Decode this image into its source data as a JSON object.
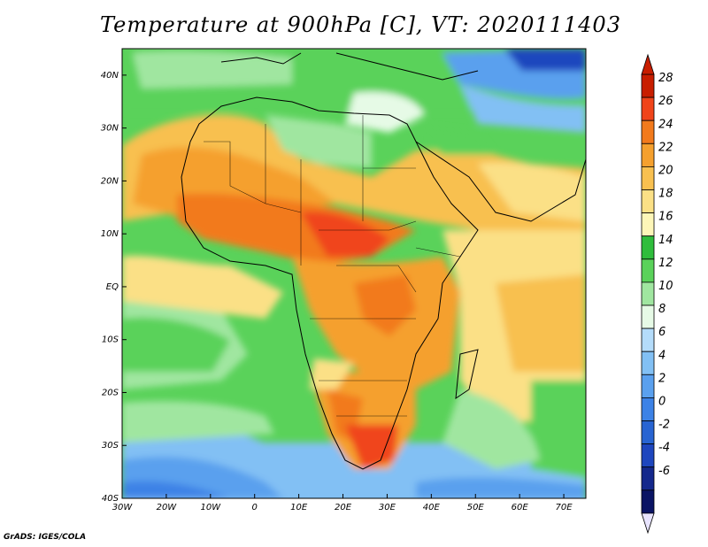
{
  "title": "Temperature at 900hPa [C], VT: 2020111403",
  "footer": "GrADS: IGES/COLA",
  "map": {
    "lon_range": [
      -30,
      75
    ],
    "lat_range": [
      -40,
      45
    ],
    "x_ticks": [
      "30W",
      "20W",
      "10W",
      "0",
      "10E",
      "20E",
      "30E",
      "40E",
      "50E",
      "60E",
      "70E"
    ],
    "y_ticks": [
      "40N",
      "30N",
      "20N",
      "10N",
      "EQ",
      "10S",
      "20S",
      "30S",
      "40S"
    ]
  },
  "colorbar": {
    "labels": [
      "28",
      "26",
      "24",
      "22",
      "20",
      "18",
      "16",
      "14",
      "12",
      "10",
      "8",
      "6",
      "4",
      "2",
      "0",
      "-2",
      "-4",
      "-6"
    ],
    "colors": [
      "#c81e00",
      "#f0441a",
      "#f27a1c",
      "#f5a02e",
      "#f8c050",
      "#fbe086",
      "#fdf6b8",
      "#2fbd3c",
      "#5ad25a",
      "#a0e6a0",
      "#e6fae6",
      "#b4dcfa",
      "#82c0f4",
      "#5aa0ee",
      "#3c82e6",
      "#2864d2",
      "#1e46be",
      "#14288c",
      "#0a1464"
    ]
  }
}
